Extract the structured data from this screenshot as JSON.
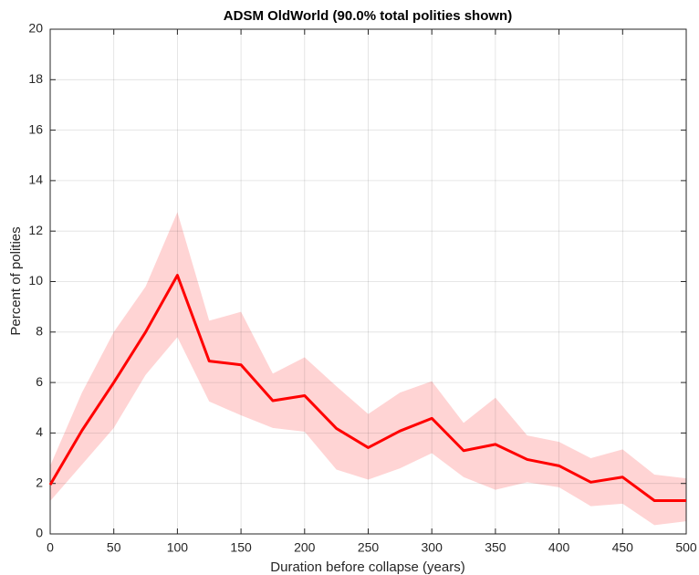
{
  "chart_data": {
    "type": "line",
    "title": "ADSM OldWorld (90.0% total polities shown)",
    "x_label": "Duration before collapse (years)",
    "y_label": "Percent of polities",
    "x": [
      0,
      25,
      50,
      75,
      100,
      125,
      150,
      175,
      200,
      225,
      250,
      275,
      300,
      325,
      350,
      375,
      400,
      425,
      450,
      475,
      500
    ],
    "series": [
      {
        "color": "#ff0000",
        "values": [
          1.95,
          4.1,
          6.0,
          8.0,
          10.25,
          6.85,
          6.7,
          5.28,
          5.48,
          4.18,
          3.42,
          4.08,
          4.58,
          3.3,
          3.55,
          2.95,
          2.7,
          2.05,
          2.25,
          1.32,
          1.32
        ]
      }
    ],
    "band": {
      "color": "#ffd4d4",
      "upper": [
        2.7,
        5.6,
        8.0,
        9.8,
        12.75,
        8.45,
        8.8,
        6.35,
        7.0,
        5.85,
        4.75,
        5.6,
        6.05,
        4.4,
        5.4,
        3.9,
        3.65,
        3.0,
        3.35,
        2.35,
        2.2
      ],
      "lower": [
        1.3,
        2.75,
        4.2,
        6.3,
        7.8,
        5.25,
        4.7,
        4.2,
        4.05,
        2.55,
        2.15,
        2.6,
        3.2,
        2.25,
        1.75,
        2.05,
        1.85,
        1.1,
        1.2,
        0.35,
        0.5
      ]
    },
    "xlim": [
      0,
      500
    ],
    "ylim": [
      0,
      20
    ],
    "xticks": [
      0,
      50,
      100,
      150,
      200,
      250,
      300,
      350,
      400,
      450,
      500
    ],
    "yticks": [
      0,
      2,
      4,
      6,
      8,
      10,
      12,
      14,
      16,
      18,
      20
    ],
    "grid": true
  }
}
